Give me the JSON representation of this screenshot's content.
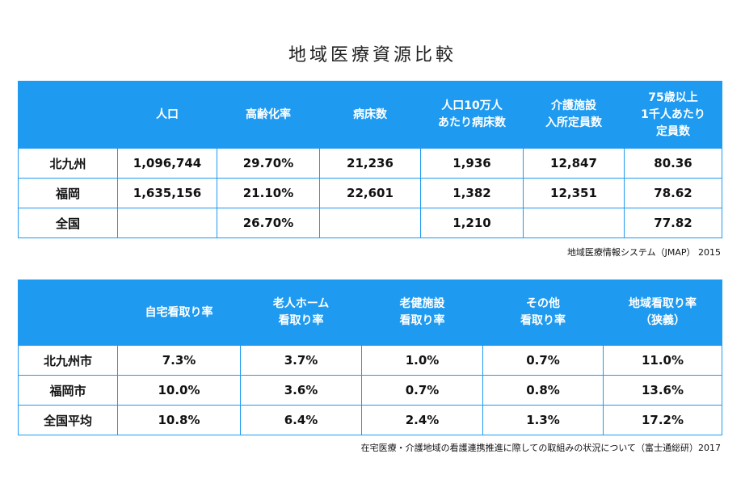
{
  "title": "地域医療資源比較",
  "tables": [
    {
      "header": [
        null,
        [
          "人口"
        ],
        [
          "高齢化率"
        ],
        [
          "病床数"
        ],
        [
          "人口10万人",
          "あたり病床数"
        ],
        [
          "介護施設",
          "入所定員数"
        ],
        [
          "75歳以上",
          "1千人あたり",
          "定員数"
        ]
      ],
      "rows": [
        [
          "北九州",
          "1,096,744",
          "29.70%",
          "21,236",
          "1,936",
          "12,847",
          "80.36"
        ],
        [
          "福岡",
          "1,635,156",
          "21.10%",
          "22,601",
          "1,382",
          "12,351",
          "78.62"
        ],
        [
          "全国",
          null,
          "26.70%",
          null,
          "1,210",
          null,
          "77.82"
        ]
      ],
      "source": "地域医療情報システム（JMAP） 2015"
    },
    {
      "header": [
        null,
        [
          "自宅看取り率"
        ],
        [
          "老人ホーム",
          "看取り率"
        ],
        [
          "老健施設",
          "看取り率"
        ],
        [
          "その他",
          "看取り率"
        ],
        [
          "地域看取り率",
          "（狭義）"
        ]
      ],
      "rows": [
        [
          "北九州市",
          "7.3%",
          "3.7%",
          "1.0%",
          "0.7%",
          "11.0%"
        ],
        [
          "福岡市",
          "10.0%",
          "3.6%",
          "0.7%",
          "0.8%",
          "13.6%"
        ],
        [
          "全国平均",
          "10.8%",
          "6.4%",
          "2.4%",
          "1.3%",
          "17.2%"
        ]
      ],
      "source": "在宅医療・介護地域の看護連携推進に際しての取組みの状況について（富士通総研）2017"
    }
  ]
}
